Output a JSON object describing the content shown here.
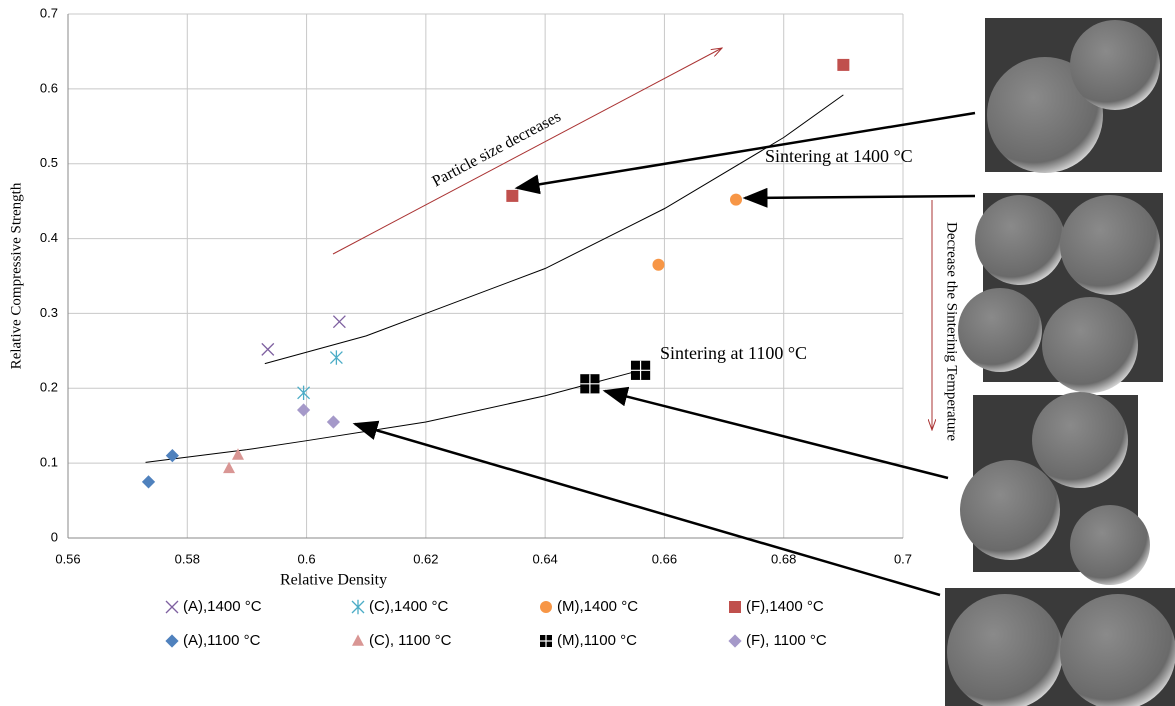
{
  "chart_data": {
    "type": "scatter",
    "xlabel": "Relative Density",
    "ylabel": "Relative Compressive Strength",
    "xlim": [
      0.56,
      0.7
    ],
    "xticks": [
      0.56,
      0.58,
      0.6,
      0.62,
      0.64,
      0.66,
      0.68,
      0.7
    ],
    "ylim": [
      0,
      0.7
    ],
    "yticks": [
      0,
      0.1,
      0.2,
      0.3,
      0.4,
      0.5,
      0.6,
      0.7
    ],
    "grid": true,
    "series": [
      {
        "name": "(A),1400 °C",
        "color": "#7e60a0",
        "marker": "cross",
        "x": [
          0.5935,
          0.6055
        ],
        "values": [
          0.252,
          0.289
        ]
      },
      {
        "name": "(C),1400 °C",
        "color": "#4bacc6",
        "marker": "star",
        "x": [
          0.5995,
          0.605
        ],
        "values": [
          0.194,
          0.241
        ]
      },
      {
        "name": "(M),1400 °C",
        "color": "#f79646",
        "marker": "circle",
        "x": [
          0.659,
          0.672
        ],
        "values": [
          0.365,
          0.452
        ]
      },
      {
        "name": "(F),1400 °C",
        "color": "#c0504d",
        "marker": "square",
        "x": [
          0.6345,
          0.69
        ],
        "values": [
          0.457,
          0.632
        ]
      },
      {
        "name": "(A),1100 °C",
        "color": "#4f81bd",
        "marker": "diamond",
        "x": [
          0.5735,
          0.5775
        ],
        "values": [
          0.075,
          0.11
        ]
      },
      {
        "name": "(C), 1100 °C",
        "color": "#d99694",
        "marker": "triangle",
        "x": [
          0.587,
          0.5885
        ],
        "values": [
          0.093,
          0.111
        ]
      },
      {
        "name": "(M),1100 °C",
        "color": "#000000",
        "marker": "boxcross",
        "x": [
          0.6475,
          0.656
        ],
        "values": [
          0.206,
          0.224
        ]
      },
      {
        "name": "(F), 1100 °C",
        "color": "#a599c9",
        "marker": "diamond",
        "x": [
          0.5995,
          0.6045
        ],
        "values": [
          0.171,
          0.155
        ]
      }
    ],
    "trendlines": [
      {
        "x": [
          0.593,
          0.61,
          0.62,
          0.64,
          0.66,
          0.68,
          0.69
        ],
        "values": [
          0.233,
          0.27,
          0.3,
          0.36,
          0.44,
          0.535,
          0.592
        ]
      },
      {
        "x": [
          0.573,
          0.59,
          0.6,
          0.62,
          0.64,
          0.655
        ],
        "values": [
          0.101,
          0.118,
          0.13,
          0.155,
          0.19,
          0.222
        ]
      }
    ],
    "annotations": [
      "Particle size decreases",
      "Sintering at 1400 °C",
      "Sintering at 1100 °C",
      "Decrease the Sinterinig Temperature"
    ]
  }
}
